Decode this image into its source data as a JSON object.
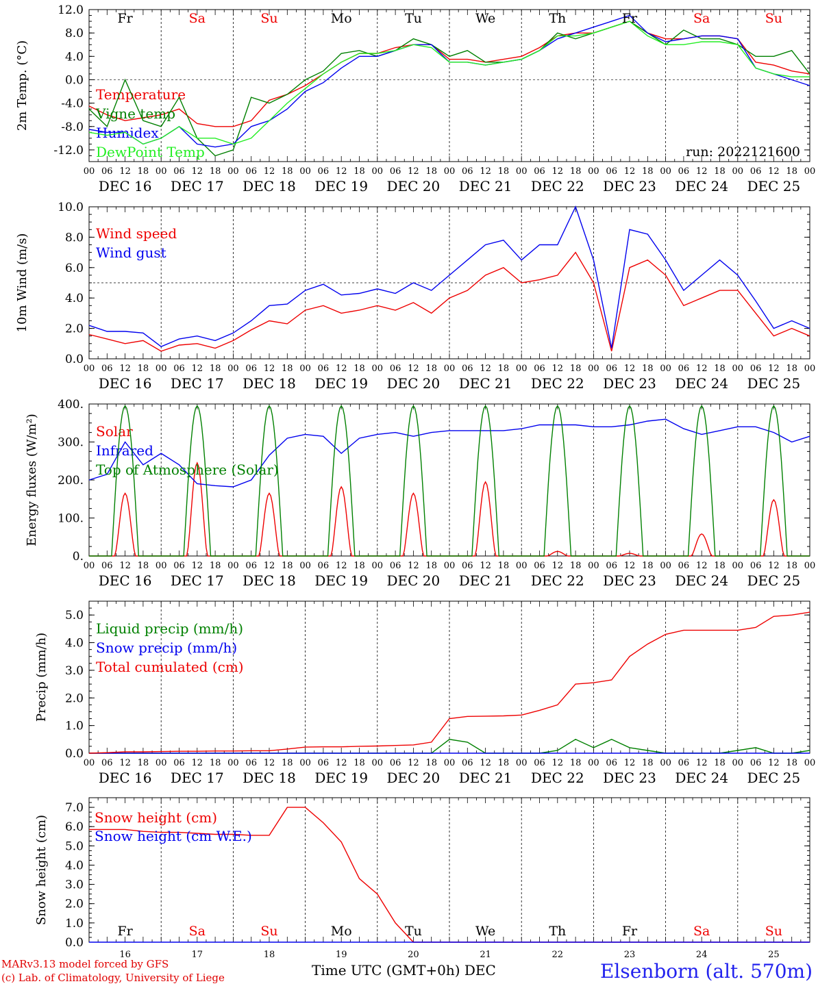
{
  "chart_data": [
    {
      "type": "line",
      "ylabel": "2m Temp. (°C)",
      "ylim": [
        -14,
        12
      ],
      "yticks": [
        "12.0",
        "8.0",
        "4.0",
        "0.0",
        "-4.0",
        "-8.0",
        "-12.0"
      ],
      "ytick_values": [
        12,
        8,
        4,
        0,
        -4,
        -8,
        -12
      ],
      "ref_line": 0,
      "annotation": "run: 2022121600",
      "weekday_labels": [
        "Fr",
        "Sa",
        "Su",
        "Mo",
        "Tu",
        "We",
        "Th",
        "Fr",
        "Sa",
        "Su"
      ],
      "x_hours": [
        0,
        6,
        12,
        18,
        24,
        30,
        36,
        42,
        48,
        54,
        60,
        66,
        72,
        78,
        84,
        90,
        96,
        102,
        108,
        114,
        120,
        126,
        132,
        138,
        144,
        150,
        156,
        162,
        168,
        174,
        180,
        186,
        192,
        198,
        204,
        210,
        216,
        222,
        228,
        234,
        240
      ],
      "series": [
        {
          "name": "Temperature",
          "color": "#ee0000",
          "values": [
            -4.5,
            -6,
            -7,
            -6.5,
            -6,
            -5,
            -7.5,
            -8,
            -8,
            -7,
            -3.5,
            -2.5,
            -1,
            1,
            3,
            4.5,
            4.5,
            5.5,
            6,
            6,
            3.5,
            3.5,
            3,
            3.5,
            4,
            5.5,
            7.5,
            8,
            8,
            9,
            10,
            8,
            7,
            7,
            7.5,
            7.5,
            7,
            3,
            2.5,
            1.5,
            1
          ]
        },
        {
          "name": "Vigne temp",
          "color": "#008000",
          "values": [
            -5,
            -8,
            0,
            -7,
            -8,
            -3,
            -10,
            -13,
            -12,
            -3,
            -4,
            -2.5,
            0,
            1.5,
            4.5,
            5,
            4,
            5,
            7,
            6,
            4,
            5,
            3,
            3,
            3.5,
            5,
            8,
            7,
            8,
            9,
            10,
            8,
            6,
            8.5,
            7,
            7,
            6,
            4,
            4,
            5,
            1
          ]
        },
        {
          "name": "Humidex",
          "color": "#0000ee",
          "values": [
            -8.5,
            -9,
            -9,
            -11,
            -10,
            -8,
            -11,
            -11.5,
            -11,
            -8,
            -7,
            -5,
            -2,
            -0.5,
            2,
            4,
            4,
            5,
            6,
            6,
            3,
            3,
            2.5,
            3,
            3.5,
            5,
            7,
            8,
            9,
            10,
            11,
            8,
            6.5,
            7,
            7.5,
            7.5,
            7,
            2,
            1,
            0,
            -1
          ]
        },
        {
          "name": "DewPoint Temp",
          "color": "#22ee22",
          "values": [
            -9,
            -9.5,
            -9,
            -11,
            -10,
            -8,
            -10,
            -10,
            -11,
            -10,
            -7,
            -4,
            -1.5,
            1,
            3,
            4.5,
            4.5,
            5,
            6,
            5.5,
            3,
            3,
            2.5,
            3,
            3.5,
            5,
            7.5,
            7.5,
            8,
            9,
            10,
            7.5,
            6,
            6,
            6.5,
            6.5,
            6,
            2,
            1,
            0.5,
            0.5
          ]
        }
      ]
    },
    {
      "type": "line",
      "ylabel": "10m Wind (m/s)",
      "ylim": [
        0,
        10
      ],
      "yticks": [
        "10.0",
        "8.0",
        "6.0",
        "4.0",
        "2.0",
        "0.0"
      ],
      "ytick_values": [
        10,
        8,
        6,
        4,
        2,
        0
      ],
      "ref_line": 5,
      "x_hours": [
        0,
        6,
        12,
        18,
        24,
        30,
        36,
        42,
        48,
        54,
        60,
        66,
        72,
        78,
        84,
        90,
        96,
        102,
        108,
        114,
        120,
        126,
        132,
        138,
        144,
        150,
        156,
        162,
        168,
        174,
        180,
        186,
        192,
        198,
        204,
        210,
        216,
        222,
        228,
        234,
        240
      ],
      "series": [
        {
          "name": "Wind speed",
          "color": "#ee0000",
          "values": [
            1.6,
            1.3,
            1.0,
            1.2,
            0.5,
            0.9,
            1.0,
            0.7,
            1.2,
            1.9,
            2.5,
            2.3,
            3.2,
            3.5,
            3.0,
            3.2,
            3.5,
            3.2,
            3.7,
            3.0,
            4.0,
            4.5,
            5.5,
            6.0,
            5.0,
            5.2,
            5.5,
            7.0,
            5.0,
            0.5,
            6.0,
            6.5,
            5.5,
            3.5,
            4.0,
            4.5,
            4.5,
            3.0,
            1.5,
            2.0,
            1.5
          ]
        },
        {
          "name": "Wind gust",
          "color": "#0000ee",
          "values": [
            2.2,
            1.8,
            1.8,
            1.7,
            0.8,
            1.3,
            1.5,
            1.2,
            1.7,
            2.5,
            3.5,
            3.6,
            4.5,
            4.9,
            4.2,
            4.3,
            4.6,
            4.3,
            5.0,
            4.5,
            5.5,
            6.5,
            7.5,
            7.8,
            6.5,
            7.5,
            7.5,
            10.0,
            6.5,
            0.7,
            8.5,
            8.2,
            6.5,
            4.5,
            5.5,
            6.5,
            5.5,
            3.8,
            2.0,
            2.5,
            2.0
          ]
        }
      ]
    },
    {
      "type": "line",
      "ylabel": "Energy fluxes (W/m²)",
      "ylim": [
        0,
        400
      ],
      "yticks": [
        "400.",
        "300.",
        "200.",
        "100.",
        "0."
      ],
      "ytick_values": [
        400,
        300,
        200,
        100,
        0
      ],
      "solar_peaks": [
        165,
        245,
        165,
        182,
        165,
        195,
        12,
        7,
        58,
        148
      ],
      "toa_peak": 395,
      "x_hours": [
        0,
        6,
        12,
        18,
        24,
        30,
        36,
        42,
        48,
        54,
        60,
        66,
        72,
        78,
        84,
        90,
        96,
        102,
        108,
        114,
        120,
        126,
        132,
        138,
        144,
        150,
        156,
        162,
        168,
        174,
        180,
        186,
        192,
        198,
        204,
        210,
        216,
        222,
        228,
        234,
        240
      ],
      "series": [
        {
          "name": "Solar",
          "color": "#ee0000"
        },
        {
          "name": "Infrared",
          "color": "#0000ee",
          "values": [
            200,
            215,
            300,
            240,
            270,
            240,
            190,
            185,
            182,
            200,
            265,
            310,
            320,
            315,
            270,
            310,
            320,
            325,
            315,
            325,
            330,
            330,
            330,
            330,
            335,
            345,
            345,
            345,
            340,
            340,
            345,
            355,
            360,
            335,
            320,
            330,
            340,
            340,
            325,
            300,
            315
          ]
        },
        {
          "name": "Top of Atmosphere (Solar)",
          "color": "#008000"
        }
      ]
    },
    {
      "type": "line",
      "ylabel": "Precip (mm/h)",
      "ylim": [
        0,
        5.5
      ],
      "yticks": [
        "5.0",
        "4.0",
        "3.0",
        "2.0",
        "1.0",
        "0.0"
      ],
      "ytick_values": [
        5,
        4,
        3,
        2,
        1,
        0
      ],
      "x_hours": [
        0,
        6,
        12,
        18,
        24,
        30,
        36,
        42,
        48,
        54,
        60,
        66,
        72,
        78,
        84,
        90,
        96,
        102,
        108,
        114,
        120,
        126,
        132,
        138,
        144,
        150,
        156,
        162,
        168,
        174,
        180,
        186,
        192,
        198,
        204,
        210,
        216,
        222,
        228,
        234,
        240
      ],
      "series": [
        {
          "name": "Liquid precip (mm/h)",
          "color": "#008000",
          "values": [
            0,
            0,
            0,
            0,
            0,
            0,
            0,
            0,
            0,
            0,
            0,
            0,
            0,
            0,
            0,
            0,
            0,
            0,
            0,
            0,
            0.5,
            0.4,
            0,
            0,
            0,
            0,
            0.1,
            0.5,
            0.2,
            0.5,
            0.2,
            0.1,
            0,
            0,
            0,
            0,
            0.1,
            0.2,
            0,
            0,
            0.1
          ]
        },
        {
          "name": "Snow precip (mm/h)",
          "color": "#0000ee",
          "values": [
            0,
            0,
            0,
            0,
            0,
            0,
            0,
            0,
            0,
            0,
            0,
            0,
            0,
            0,
            0,
            0,
            0,
            0,
            0,
            0,
            0,
            0,
            0,
            0,
            0,
            0,
            0,
            0,
            0,
            0,
            0,
            0,
            0,
            0,
            0,
            0,
            0,
            0,
            0,
            0,
            0
          ]
        },
        {
          "name": "Total cumulated (cm)",
          "color": "#ee0000",
          "values": [
            0,
            0.02,
            0.05,
            0.05,
            0.06,
            0.07,
            0.07,
            0.08,
            0.08,
            0.09,
            0.09,
            0.15,
            0.22,
            0.23,
            0.23,
            0.25,
            0.26,
            0.28,
            0.3,
            0.4,
            1.25,
            1.33,
            1.34,
            1.35,
            1.38,
            1.55,
            1.75,
            2.5,
            2.55,
            2.65,
            3.5,
            3.95,
            4.3,
            4.45,
            4.45,
            4.45,
            4.45,
            4.55,
            4.95,
            5.0,
            5.1
          ]
        }
      ]
    },
    {
      "type": "line",
      "ylabel": "Snow height (cm)",
      "ylim": [
        0,
        7.5
      ],
      "yticks": [
        "7.0",
        "6.0",
        "5.0",
        "4.0",
        "3.0",
        "2.0",
        "1.0",
        "0.0"
      ],
      "ytick_values": [
        7,
        6,
        5,
        4,
        3,
        2,
        1,
        0
      ],
      "weekday_labels": [
        "Fr",
        "Sa",
        "Su",
        "Mo",
        "Tu",
        "We",
        "Th",
        "Fr",
        "Sa",
        "Su"
      ],
      "x_day_labels": [
        "16",
        "17",
        "18",
        "19",
        "20",
        "21",
        "22",
        "23",
        "24",
        "25"
      ],
      "x_hours": [
        0,
        6,
        12,
        18,
        24,
        30,
        36,
        42,
        48,
        54,
        60,
        66,
        72,
        78,
        84,
        90,
        96,
        102,
        108,
        114,
        120,
        126,
        132,
        138,
        144,
        150,
        156,
        162,
        168,
        174,
        180,
        186,
        192,
        198,
        204,
        210,
        216,
        222,
        228,
        234,
        240
      ],
      "series": [
        {
          "name": "Snow height (cm)",
          "color": "#ee0000",
          "values": [
            5.85,
            5.85,
            5.85,
            5.75,
            5.7,
            5.7,
            5.65,
            5.6,
            5.6,
            5.55,
            5.55,
            7.0,
            7.0,
            6.2,
            5.2,
            3.3,
            2.5,
            1.0,
            0,
            0,
            0,
            0,
            0,
            0,
            0,
            0,
            0,
            0,
            0,
            0,
            0,
            0,
            0,
            0,
            0,
            0,
            0,
            0,
            0,
            0,
            0
          ]
        },
        {
          "name": "Snow height (cm W.E.)",
          "color": "#0000ee",
          "values": [
            0,
            0,
            0,
            0,
            0,
            0,
            0,
            0,
            0,
            0,
            0,
            0,
            0,
            0,
            0,
            0,
            0,
            0,
            0,
            0,
            0,
            0,
            0,
            0,
            0,
            0,
            0,
            0,
            0,
            0,
            0,
            0,
            0,
            0,
            0,
            0,
            0,
            0,
            0,
            0,
            0
          ]
        }
      ]
    }
  ],
  "x_axis": {
    "hour_labels": [
      "00",
      "06",
      "12",
      "18"
    ],
    "date_labels": [
      "DEC 16",
      "DEC 17",
      "DEC 18",
      "DEC 19",
      "DEC 20",
      "DEC 21",
      "DEC 22",
      "DEC 23",
      "DEC 24",
      "DEC 25"
    ],
    "last_label": "00",
    "weekend_color": "#ee0000"
  },
  "footer": {
    "credit_line1": "MARv3.13 model forced by GFS",
    "credit_line2": "(c) Lab. of Climatology, University of Liege",
    "axis_title": "Time UTC (GMT+0h) DEC",
    "station": "Elsenborn (alt. 570m)"
  }
}
